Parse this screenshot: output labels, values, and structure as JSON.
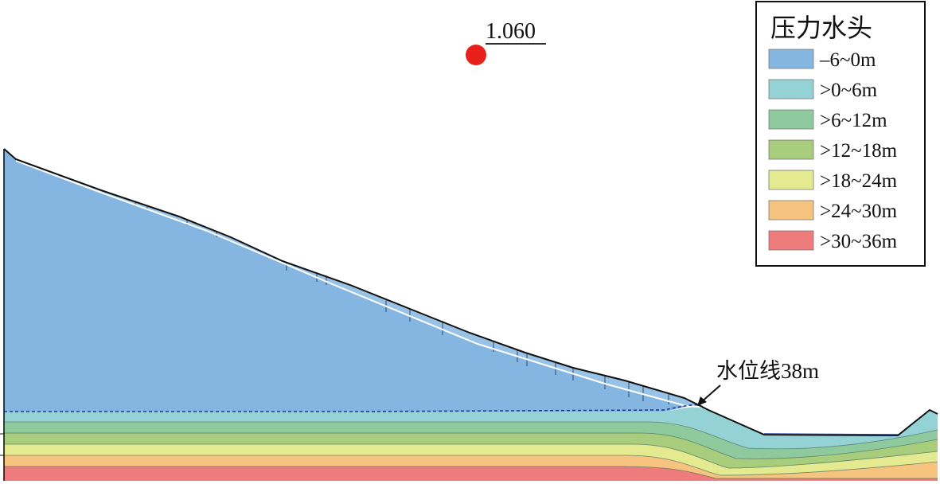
{
  "figure": {
    "factor_label": "1.060",
    "water_level_label": "水位线38m",
    "colors": {
      "slope_body": "#84B6E1",
      "slip_surface": "#ffffff",
      "water_line": "#1F3C8C",
      "marker": "#E8201C",
      "ground_line": "#111111"
    }
  },
  "legend": {
    "title": "压力水头",
    "items": [
      {
        "label": "–6~0m",
        "color": "#84B6E1"
      },
      {
        "label": ">0~6m",
        "color": "#95D2D5"
      },
      {
        "label": ">6~12m",
        "color": "#8FCA9E"
      },
      {
        "label": ">12~18m",
        "color": "#A7CD7D"
      },
      {
        "label": ">18~24m",
        "color": "#E3EA8F"
      },
      {
        "label": ">24~30m",
        "color": "#F6C47E"
      },
      {
        "label": ">30~36m",
        "color": "#EE7C7C"
      }
    ]
  }
}
